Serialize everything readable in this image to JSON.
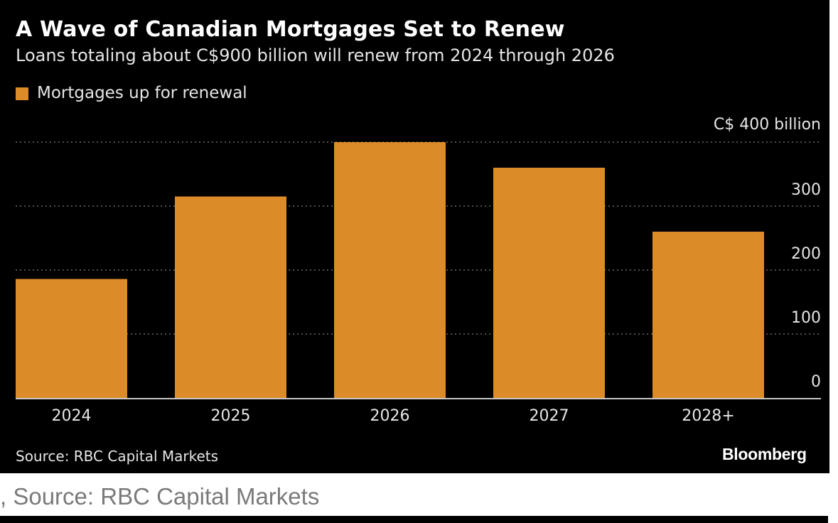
{
  "chart_data": {
    "type": "bar",
    "title": "A Wave of Canadian Mortgages Set to Renew",
    "subtitle": "Loans totaling about C$900 billion will renew from 2024 through 2026",
    "categories": [
      "2024",
      "2025",
      "2026",
      "2027",
      "2028+"
    ],
    "series": [
      {
        "name": "Mortgages up for renewal",
        "values": [
          186,
          315,
          400,
          360,
          260
        ]
      }
    ],
    "legend_label": "Mortgages up for renewal",
    "yticks": [
      0,
      100,
      200,
      300,
      400
    ],
    "ytick_labels": [
      "0",
      "100",
      "200",
      "300",
      "C$ 400 billion"
    ],
    "ylim": [
      0,
      400
    ],
    "xlabel": "",
    "ylabel": "",
    "grid": true,
    "legend_position": "top-left",
    "axis_side": "right",
    "bar_color": "#db8b27",
    "grid_color": "#6a6a6a"
  },
  "footer": {
    "source": "Source: RBC Capital Markets",
    "brand": "Bloomberg"
  },
  "caption": ", Source: RBC Capital Markets"
}
